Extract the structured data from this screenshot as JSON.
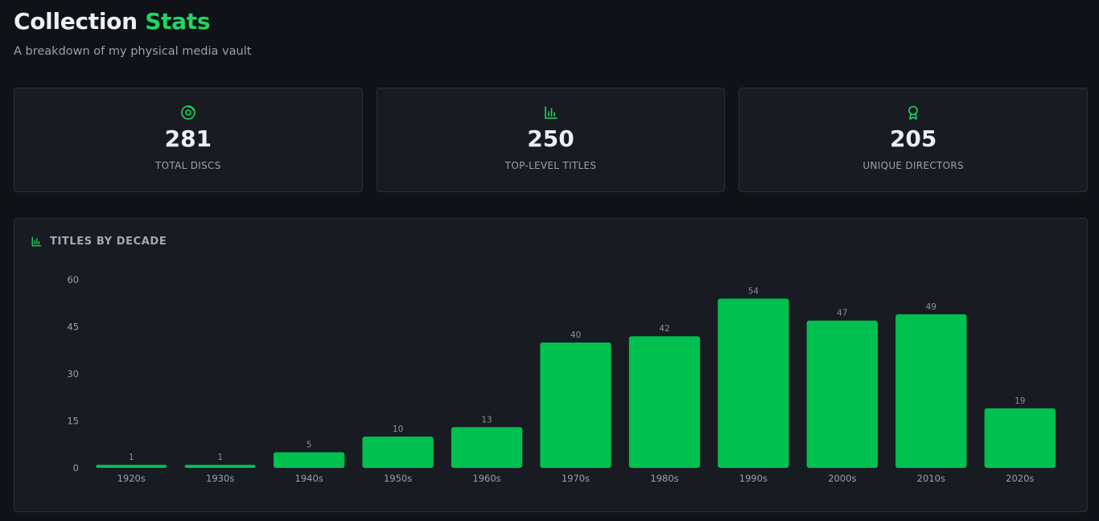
{
  "header": {
    "title_main": "Collection",
    "title_accent": "Stats",
    "subtitle": "A breakdown of my physical media vault"
  },
  "stats": [
    {
      "icon": "disc-icon",
      "value": "281",
      "label": "TOTAL DISCS"
    },
    {
      "icon": "bar-chart-icon",
      "value": "250",
      "label": "TOP-LEVEL TITLES"
    },
    {
      "icon": "award-icon",
      "value": "205",
      "label": "UNIQUE DIRECTORS"
    }
  ],
  "colors": {
    "accent": "#1ed760",
    "bar": "#00c04f",
    "card_bg": "#181b22",
    "page_bg": "#0f1216"
  },
  "chart_data": {
    "type": "bar",
    "title": "TITLES BY DECADE",
    "categories": [
      "1920s",
      "1930s",
      "1940s",
      "1950s",
      "1960s",
      "1970s",
      "1980s",
      "1990s",
      "2000s",
      "2010s",
      "2020s"
    ],
    "values": [
      1,
      1,
      5,
      10,
      13,
      40,
      42,
      54,
      47,
      49,
      19
    ],
    "yticks": [
      0,
      15,
      30,
      45,
      60
    ],
    "ylim": [
      0,
      60
    ],
    "xlabel": "",
    "ylabel": "",
    "grid": false,
    "data_labels": true
  }
}
